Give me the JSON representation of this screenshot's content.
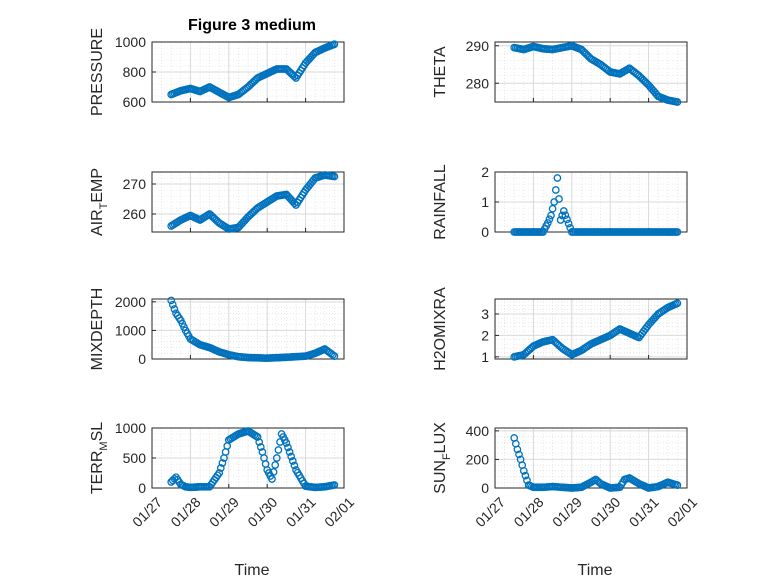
{
  "figure": {
    "title": "Figure 3 medium",
    "xlabel": "Time",
    "x_tick_labels": [
      "01/27",
      "01/28",
      "01/29",
      "01/30",
      "01/31",
      "02/01"
    ],
    "marker_color": "#0072BD",
    "grid_color": "#d9d9d9"
  },
  "chart_data": [
    {
      "type": "scatter",
      "ylabel": "PRESSURE",
      "ylim": [
        600,
        1000
      ],
      "yticks": [
        600,
        800,
        1000
      ],
      "grid": true,
      "x": [
        "01/27 12:00",
        "01/27 18:00",
        "01/28 00:00",
        "01/28 06:00",
        "01/28 12:00",
        "01/28 18:00",
        "01/29 00:00",
        "01/29 06:00",
        "01/29 12:00",
        "01/29 18:00",
        "01/30 00:00",
        "01/30 06:00",
        "01/30 12:00",
        "01/30 18:00",
        "01/31 00:00",
        "01/31 06:00",
        "01/31 12:00",
        "01/31 18:00"
      ],
      "y": [
        650,
        675,
        690,
        670,
        700,
        665,
        630,
        650,
        700,
        760,
        790,
        820,
        820,
        760,
        860,
        930,
        960,
        985
      ]
    },
    {
      "type": "scatter",
      "ylabel": "THETA",
      "ylim": [
        275,
        291
      ],
      "yticks": [
        280,
        290
      ],
      "grid": true,
      "x": [
        "01/27 12:00",
        "01/27 18:00",
        "01/28 00:00",
        "01/28 06:00",
        "01/28 12:00",
        "01/28 18:00",
        "01/29 00:00",
        "01/29 06:00",
        "01/29 12:00",
        "01/29 18:00",
        "01/30 00:00",
        "01/30 06:00",
        "01/30 12:00",
        "01/30 18:00",
        "01/31 00:00",
        "01/31 06:00",
        "01/31 12:00",
        "01/31 18:00"
      ],
      "y": [
        289.5,
        289.0,
        289.8,
        289.2,
        289.0,
        289.5,
        290.0,
        289.0,
        286.5,
        285.0,
        283.0,
        282.5,
        284.0,
        282.0,
        279.5,
        276.5,
        275.5,
        275.0
      ]
    },
    {
      "type": "scatter",
      "ylabel": "AIR_TEMP",
      "ylabel_base": "AIR",
      "ylabel_sub": "T",
      "ylabel_rest": "EMP",
      "ylim": [
        254,
        274
      ],
      "yticks": [
        260,
        270
      ],
      "grid": true,
      "x": [
        "01/27 12:00",
        "01/27 18:00",
        "01/28 00:00",
        "01/28 06:00",
        "01/28 12:00",
        "01/28 18:00",
        "01/29 00:00",
        "01/29 06:00",
        "01/29 12:00",
        "01/29 18:00",
        "01/30 00:00",
        "01/30 06:00",
        "01/30 12:00",
        "01/30 18:00",
        "01/31 00:00",
        "01/31 06:00",
        "01/31 12:00",
        "01/31 18:00"
      ],
      "y": [
        256,
        258,
        259.5,
        258,
        260,
        257,
        255,
        255.5,
        259,
        262,
        264,
        266,
        266.5,
        263,
        268,
        272,
        273,
        272.5
      ]
    },
    {
      "type": "scatter",
      "ylabel": "RAINFALL",
      "ylim": [
        0,
        2
      ],
      "yticks": [
        0,
        1,
        2
      ],
      "grid": true,
      "x": [
        "01/27 12:00",
        "01/27 18:00",
        "01/28 00:00",
        "01/28 06:00",
        "01/28 09:00",
        "01/28 11:00",
        "01/28 13:00",
        "01/28 15:00",
        "01/28 17:00",
        "01/28 19:00",
        "01/29 00:00",
        "01/29 12:00",
        "01/30 00:00",
        "01/30 12:00",
        "01/31 00:00",
        "01/31 12:00",
        "01/31 18:00"
      ],
      "y": [
        0,
        0,
        0,
        0,
        0.3,
        0.55,
        1.0,
        1.8,
        0.4,
        0.7,
        0,
        0,
        0,
        0,
        0,
        0,
        0
      ]
    },
    {
      "type": "scatter",
      "ylabel": "MIXDEPTH",
      "ylim": [
        0,
        2100
      ],
      "yticks": [
        0,
        1000,
        2000
      ],
      "grid": true,
      "x": [
        "01/27 12:00",
        "01/27 15:00",
        "01/27 18:00",
        "01/27 21:00",
        "01/28 00:00",
        "01/28 06:00",
        "01/28 12:00",
        "01/28 18:00",
        "01/29 00:00",
        "01/29 06:00",
        "01/29 12:00",
        "01/30 00:00",
        "01/30 12:00",
        "01/31 00:00",
        "01/31 06:00",
        "01/31 12:00",
        "01/31 18:00"
      ],
      "y": [
        2050,
        1600,
        1350,
        1000,
        700,
        500,
        400,
        250,
        150,
        80,
        50,
        30,
        60,
        100,
        200,
        350,
        100
      ]
    },
    {
      "type": "scatter",
      "ylabel": "H2OMIXRA",
      "ylim": [
        0.9,
        3.7
      ],
      "yticks": [
        1,
        2,
        3
      ],
      "grid": true,
      "x": [
        "01/27 12:00",
        "01/27 18:00",
        "01/28 00:00",
        "01/28 06:00",
        "01/28 12:00",
        "01/28 18:00",
        "01/29 00:00",
        "01/29 06:00",
        "01/29 12:00",
        "01/29 18:00",
        "01/30 00:00",
        "01/30 06:00",
        "01/30 12:00",
        "01/30 18:00",
        "01/31 00:00",
        "01/31 06:00",
        "01/31 12:00",
        "01/31 18:00"
      ],
      "y": [
        1.0,
        1.1,
        1.5,
        1.7,
        1.8,
        1.4,
        1.1,
        1.3,
        1.6,
        1.8,
        2.0,
        2.3,
        2.1,
        1.9,
        2.5,
        3.0,
        3.3,
        3.5
      ]
    },
    {
      "type": "scatter",
      "ylabel": "TERR_MSL",
      "ylabel_base": "TERR",
      "ylabel_sub": "M",
      "ylabel_rest": "SL",
      "ylim": [
        0,
        1000
      ],
      "yticks": [
        0,
        500,
        1000
      ],
      "grid": true,
      "x": [
        "01/27 12:00",
        "01/27 15:00",
        "01/27 18:00",
        "01/27 21:00",
        "01/28 00:00",
        "01/28 06:00",
        "01/28 12:00",
        "01/28 18:00",
        "01/28 21:00",
        "01/29 00:00",
        "01/29 06:00",
        "01/29 12:00",
        "01/29 18:00",
        "01/29 21:00",
        "01/30 00:00",
        "01/30 03:00",
        "01/30 06:00",
        "01/30 09:00",
        "01/30 12:00",
        "01/30 18:00",
        "01/31 00:00",
        "01/31 06:00",
        "01/31 12:00",
        "01/31 18:00"
      ],
      "y": [
        100,
        180,
        60,
        20,
        10,
        20,
        20,
        250,
        500,
        800,
        900,
        950,
        850,
        600,
        300,
        150,
        500,
        900,
        750,
        300,
        30,
        10,
        20,
        50
      ]
    },
    {
      "type": "scatter",
      "ylabel": "SUN_FLUX",
      "ylabel_base": "SUN",
      "ylabel_sub": "F",
      "ylabel_rest": "LUX",
      "ylim": [
        0,
        420
      ],
      "yticks": [
        0,
        200,
        400
      ],
      "grid": true,
      "x": [
        "01/27 12:00",
        "01/27 14:00",
        "01/27 16:00",
        "01/27 18:00",
        "01/27 21:00",
        "01/28 00:00",
        "01/28 06:00",
        "01/28 12:00",
        "01/28 18:00",
        "01/29 00:00",
        "01/29 06:00",
        "01/29 12:00",
        "01/29 15:00",
        "01/29 18:00",
        "01/30 00:00",
        "01/30 06:00",
        "01/30 09:00",
        "01/30 12:00",
        "01/30 18:00",
        "01/31 00:00",
        "01/31 06:00",
        "01/31 12:00",
        "01/31 18:00"
      ],
      "y": [
        350,
        270,
        200,
        120,
        20,
        5,
        5,
        10,
        5,
        0,
        5,
        40,
        60,
        30,
        0,
        5,
        60,
        70,
        30,
        0,
        10,
        40,
        20
      ]
    }
  ]
}
